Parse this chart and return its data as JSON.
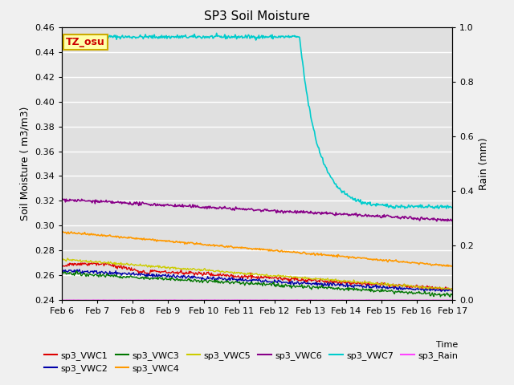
{
  "title": "SP3 Soil Moisture",
  "xlabel": "Time",
  "ylabel_left": "Soil Moisture ( m3/m3)",
  "ylabel_right": "Rain (mm)",
  "annotation": "TZ_osu",
  "xlim_days": [
    0,
    11
  ],
  "ylim_left": [
    0.24,
    0.46
  ],
  "ylim_right": [
    0.0,
    1.0
  ],
  "x_ticks_labels": [
    "Feb 6",
    "Feb 7",
    "Feb 8",
    "Feb 9",
    "Feb 10",
    "Feb 11",
    "Feb 12",
    "Feb 13",
    "Feb 14",
    "Feb 15",
    "Feb 16",
    "Feb 17"
  ],
  "background_color": "#e0e0e0",
  "fig_color": "#f0f0f0",
  "series": {
    "sp3_VWC1": {
      "color": "#dd0000",
      "lw": 1.0
    },
    "sp3_VWC2": {
      "color": "#0000aa",
      "lw": 1.0
    },
    "sp3_VWC3": {
      "color": "#007700",
      "lw": 1.0
    },
    "sp3_VWC4": {
      "color": "#ff9900",
      "lw": 1.2
    },
    "sp3_VWC5": {
      "color": "#cccc00",
      "lw": 1.0
    },
    "sp3_VWC6": {
      "color": "#880088",
      "lw": 1.2
    },
    "sp3_VWC7": {
      "color": "#00cccc",
      "lw": 1.2
    },
    "sp3_Rain": {
      "color": "#ff44ff",
      "lw": 1.0
    }
  },
  "annotation_facecolor": "#ffffaa",
  "annotation_edgecolor": "#ccaa00",
  "annotation_textcolor": "#cc0000",
  "grid_color": "#ffffff",
  "grid_lw": 1.0
}
